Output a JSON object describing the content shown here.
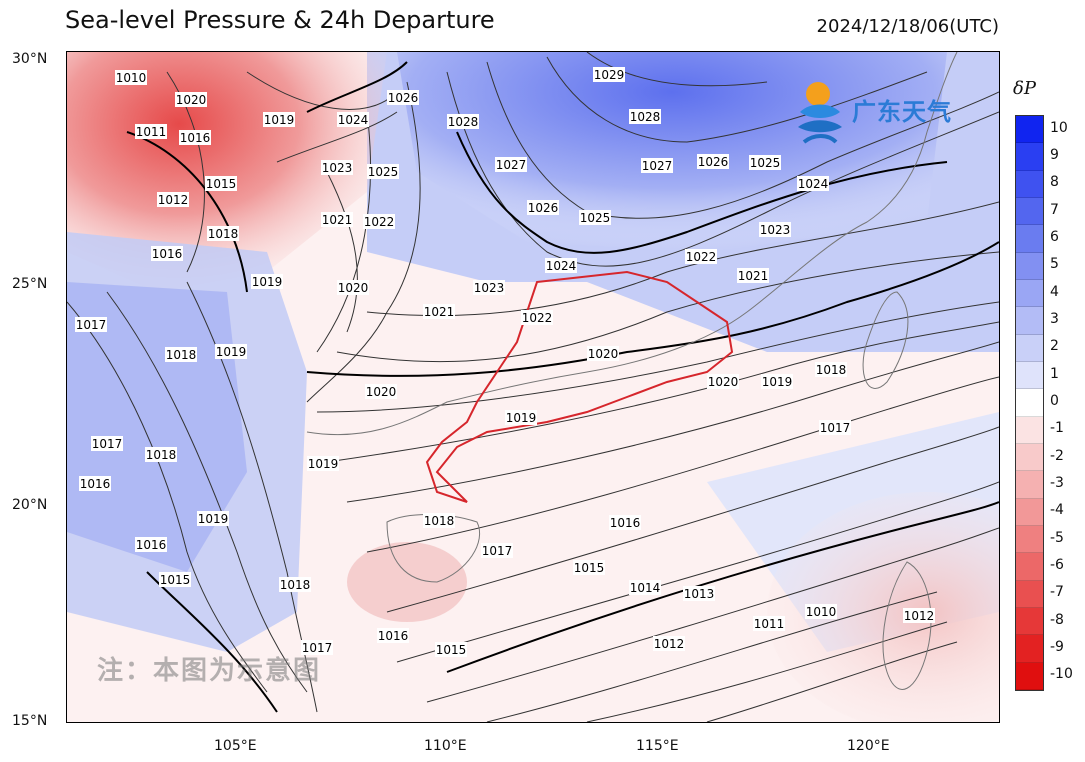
{
  "header": {
    "title": "Sea-level Pressure & 24h Departure",
    "timestamp": "2024/12/18/06(UTC)"
  },
  "axes": {
    "lat_ticks": [
      "30°N",
      "25°N",
      "20°N",
      "15°N"
    ],
    "lon_ticks": [
      "105°E",
      "110°E",
      "115°E",
      "120°E"
    ]
  },
  "legend": {
    "title": "δP",
    "levels": [
      "10",
      "9",
      "8",
      "7",
      "6",
      "5",
      "4",
      "3",
      "2",
      "1",
      "0",
      "-1",
      "-2",
      "-3",
      "-4",
      "-5",
      "-6",
      "-7",
      "-8",
      "-9",
      "-10"
    ],
    "colors": [
      "#1024f0",
      "#2a3ff2",
      "#3f52f0",
      "#5366ef",
      "#6a7cf0",
      "#8290f2",
      "#9aa6f4",
      "#b3bcf6",
      "#c9d0f8",
      "#dfe3fb",
      "#ffffff",
      "#fbe3e3",
      "#f8caca",
      "#f5b1b1",
      "#f29898",
      "#ef8080",
      "#ec6868",
      "#e95050",
      "#e63838",
      "#e32222",
      "#e00f0f"
    ]
  },
  "brand": {
    "name": "广东天气"
  },
  "watermark": {
    "text": "注：本图为示意图"
  },
  "isobar_labels": [
    "1010",
    "1011",
    "1012",
    "1013",
    "1014",
    "1015",
    "1016",
    "1017",
    "1018",
    "1019",
    "1020",
    "1021",
    "1022",
    "1023",
    "1024",
    "1025",
    "1026",
    "1027",
    "1028",
    "1029"
  ]
}
